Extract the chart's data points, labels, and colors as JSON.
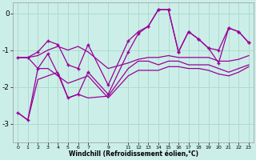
{
  "xlabel": "Windchill (Refroidissement éolien,°C)",
  "background_color": "#cceee8",
  "grid_color": "#aaddcc",
  "line_color": "#990099",
  "xlim": [
    -0.5,
    23.5
  ],
  "ylim": [
    -3.5,
    0.3
  ],
  "yticks": [
    -3,
    -2,
    -1,
    0
  ],
  "hours": [
    0,
    1,
    2,
    3,
    4,
    5,
    6,
    7,
    9,
    11,
    12,
    13,
    14,
    15,
    16,
    17,
    18,
    19,
    20,
    21,
    22,
    23
  ],
  "line_bottom": [
    -2.7,
    -2.9,
    -1.8,
    -1.7,
    -1.6,
    -2.3,
    -2.2,
    -2.3,
    -2.25,
    -1.5,
    -1.3,
    -1.3,
    -1.4,
    -1.3,
    -1.3,
    -1.4,
    -1.4,
    -1.4,
    -1.5,
    -1.6,
    -1.5,
    -1.4
  ],
  "line_mid_low": [
    -1.2,
    -1.2,
    -1.5,
    -1.5,
    -1.7,
    -1.9,
    -1.8,
    -1.7,
    -2.3,
    -1.7,
    -1.55,
    -1.55,
    -1.55,
    -1.45,
    -1.45,
    -1.5,
    -1.5,
    -1.55,
    -1.65,
    -1.7,
    -1.6,
    -1.45
  ],
  "line_mid": [
    -1.2,
    -1.2,
    -1.15,
    -1.0,
    -0.9,
    -1.0,
    -0.9,
    -1.05,
    -1.5,
    -1.35,
    -1.25,
    -1.2,
    -1.2,
    -1.15,
    -1.2,
    -1.2,
    -1.2,
    -1.2,
    -1.3,
    -1.3,
    -1.25,
    -1.15
  ],
  "line_high": [
    -1.2,
    -1.2,
    -1.05,
    -0.75,
    -0.85,
    -1.4,
    -1.5,
    -0.85,
    -1.95,
    -0.75,
    -0.5,
    -0.35,
    0.1,
    0.1,
    -1.05,
    -0.5,
    -0.7,
    -0.95,
    -1.0,
    -0.4,
    -0.5,
    -0.8
  ],
  "line_top": [
    -2.7,
    -2.9,
    -1.5,
    -1.1,
    -1.65,
    -2.3,
    -2.2,
    -1.6,
    -2.2,
    -1.05,
    -0.55,
    -0.35,
    0.1,
    0.1,
    -1.05,
    -0.5,
    -0.7,
    -0.95,
    -1.35,
    -0.4,
    -0.5,
    -0.8
  ]
}
